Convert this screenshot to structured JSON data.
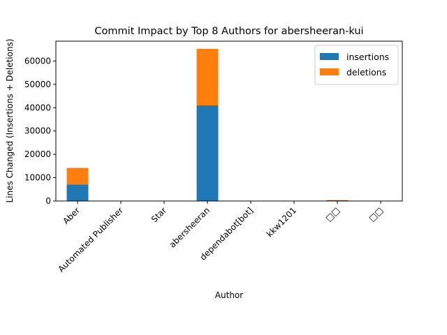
{
  "chart_data": {
    "type": "bar",
    "stacked": true,
    "title": "Commit Impact by Top 8 Authors for abersheeran-kui",
    "xlabel": "Author",
    "ylabel": "Lines Changed (Insertions + Deletions)",
    "categories": [
      "Aber",
      "Automated Publisher",
      "Star",
      "abersheeran",
      "dependabot[bot]",
      "kkw1201",
      "□□",
      "□□"
    ],
    "series": [
      {
        "name": "insertions",
        "color": "#1f77b4",
        "values": [
          7100,
          5,
          5,
          41000,
          10,
          5,
          300,
          5
        ]
      },
      {
        "name": "deletions",
        "color": "#ff7f0e",
        "values": [
          7100,
          5,
          5,
          24200,
          10,
          5,
          80,
          5
        ]
      }
    ],
    "ylim": [
      0,
      68500
    ],
    "yticks": [
      0,
      10000,
      20000,
      30000,
      40000,
      50000,
      60000
    ],
    "grid": false,
    "legend_position": "top-right"
  }
}
